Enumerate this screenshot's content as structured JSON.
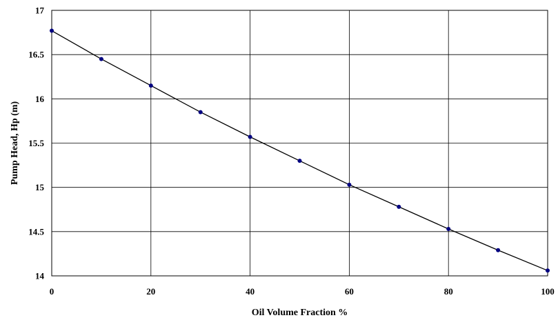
{
  "chart_data": {
    "type": "line",
    "title": "",
    "xlabel": "Oil Volume Fraction %",
    "ylabel": "Pump Head, Hp (m)",
    "xlim": [
      0,
      100
    ],
    "ylim": [
      14,
      17
    ],
    "x_ticks": [
      "0",
      "20",
      "40",
      "60",
      "80",
      "100"
    ],
    "y_ticks": [
      "14",
      "14.5",
      "15",
      "15.5",
      "16",
      "16.5",
      "17"
    ],
    "grid": true,
    "legend": "none",
    "series": [
      {
        "color": "#000080",
        "line_color": "#000000",
        "x": [
          0,
          10,
          20,
          30,
          40,
          50,
          60,
          70,
          80,
          90,
          100
        ],
        "y": [
          16.77,
          16.45,
          16.15,
          15.85,
          15.57,
          15.3,
          15.03,
          14.78,
          14.53,
          14.29,
          14.06
        ]
      }
    ]
  }
}
